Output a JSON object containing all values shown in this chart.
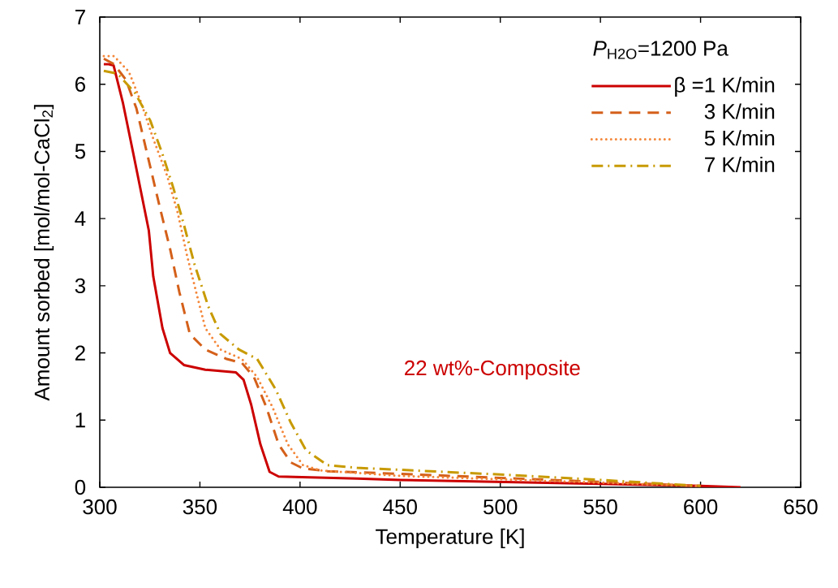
{
  "chart_data": {
    "type": "line",
    "xlabel": "Temperature [K]",
    "ylabel": "Amount sorbed [mol/mol-CaCl$_{2}$]",
    "xlim": [
      300,
      650
    ],
    "xticks": [
      300,
      350,
      400,
      450,
      500,
      550,
      600,
      650
    ],
    "ylim": [
      0,
      7
    ],
    "yticks": [
      0,
      1,
      2,
      3,
      4,
      5,
      6,
      7
    ],
    "grid": false,
    "legend": "top right",
    "annotations": [
      "*P*$_{H2O}$=1200 Pa",
      "22 wt%-Composite"
    ],
    "series": [
      {
        "name": "β =1 K/min",
        "color": "#cc0000",
        "line_style": "solid",
        "x": [
          302,
          304,
          306.9,
          311.5,
          316.8,
          324.5,
          326.7,
          331.3,
          335.1,
          342,
          352.7,
          368,
          371.8,
          375.6,
          380.2,
          384.8,
          389.3,
          428.5,
          450,
          500,
          550,
          600,
          620
        ],
        "values": [
          6.3,
          6.3,
          6.28,
          5.73,
          4.96,
          3.82,
          3.14,
          2.37,
          2.0,
          1.82,
          1.75,
          1.71,
          1.6,
          1.23,
          0.64,
          0.23,
          0.16,
          0.13,
          0.11,
          0.08,
          0.05,
          0.02,
          0.0
        ]
      },
      {
        "name": "3 K/min",
        "color": "#d4601a",
        "line_style": "dashed",
        "x": [
          302,
          307,
          313,
          318.3,
          323.7,
          329.8,
          335.1,
          339.7,
          345,
          352.7,
          363.4,
          371,
          377,
          383.2,
          389.3,
          395.4,
          401.5,
          413.7,
          450,
          500,
          550,
          600
        ],
        "values": [
          6.38,
          6.3,
          6.07,
          5.64,
          4.96,
          4.19,
          3.55,
          2.91,
          2.28,
          2.05,
          1.91,
          1.85,
          1.64,
          1.19,
          0.64,
          0.37,
          0.28,
          0.24,
          0.2,
          0.14,
          0.08,
          0.02
        ]
      },
      {
        "name": "5 K/min",
        "color": "#f4873a",
        "line_style": "dotted",
        "x": [
          302,
          307,
          314.5,
          320.6,
          326.7,
          333.6,
          338.9,
          343.5,
          348.1,
          352.7,
          360.3,
          371,
          378.6,
          386.3,
          393.9,
          401.5,
          410.7,
          450,
          500,
          550,
          600
        ],
        "values": [
          6.42,
          6.42,
          6.19,
          5.73,
          5.19,
          4.64,
          4.09,
          3.46,
          2.91,
          2.37,
          2.05,
          1.91,
          1.64,
          1.19,
          0.64,
          0.33,
          0.25,
          0.17,
          0.12,
          0.07,
          0.02
        ]
      },
      {
        "name": "7 K/min",
        "color": "#c89a00",
        "line_style": "dashdot",
        "x": [
          302,
          307,
          310,
          317.6,
          325.2,
          331.3,
          336.7,
          342,
          347.3,
          354.2,
          360.3,
          369.5,
          378.6,
          387.8,
          395.4,
          403,
          413.7,
          428.5,
          450,
          500,
          550,
          600
        ],
        "values": [
          6.2,
          6.17,
          6.12,
          5.87,
          5.46,
          4.96,
          4.46,
          3.91,
          3.32,
          2.69,
          2.28,
          2.05,
          1.91,
          1.46,
          0.96,
          0.55,
          0.33,
          0.29,
          0.26,
          0.19,
          0.11,
          0.02
        ]
      }
    ]
  }
}
